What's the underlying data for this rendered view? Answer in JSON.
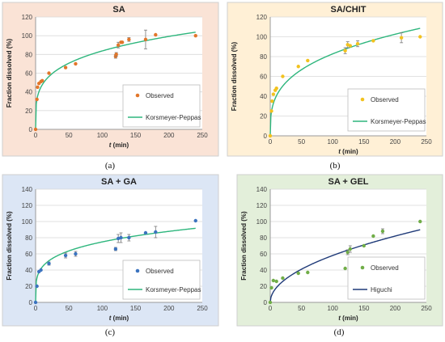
{
  "colors": {
    "panel_a_bg": "#fae3d6",
    "panel_b_bg": "#fff0d6",
    "panel_c_bg": "#dce6f5",
    "panel_d_bg": "#e3efda",
    "border": "#cfcfcf",
    "grid": "#d9d9d9",
    "fit_green": "#2eb67d",
    "fit_navy": "#1f3a78",
    "marker_a": "#e2762a",
    "marker_b": "#f2c21f",
    "marker_c": "#3b73bf",
    "marker_d": "#70ad47"
  },
  "chart_data": [
    {
      "label": "(a)",
      "type": "scatter",
      "title": "SA",
      "xlabel_var": "t",
      "xlabel_unit": " (min)",
      "ylabel": "Fraction dissolved (%)",
      "xlim": [
        0,
        250
      ],
      "ylim": [
        0,
        120
      ],
      "xticks": [
        0,
        50,
        100,
        150,
        200,
        250
      ],
      "yticks": [
        0,
        20,
        40,
        60,
        80,
        100,
        120
      ],
      "grid": true,
      "legend_position": "bottom-right",
      "observed": {
        "name": "Observed",
        "x": [
          0,
          2,
          3,
          5,
          8,
          10,
          20,
          45,
          60,
          120,
          121,
          124,
          128,
          130,
          140,
          165,
          180,
          240
        ],
        "y": [
          0,
          32,
          45,
          49,
          51,
          52,
          60,
          66,
          70,
          78,
          80,
          90,
          93,
          93,
          96,
          96,
          101,
          100
        ],
        "err": [
          0,
          0,
          0,
          0,
          0,
          0,
          0,
          0,
          0,
          2,
          2,
          3,
          0,
          0,
          2,
          10,
          0,
          0
        ]
      },
      "fit": {
        "name": "Korsmeyer-Peppas",
        "model": "power",
        "k": 27.1,
        "n": 0.245
      }
    },
    {
      "label": "(b)",
      "type": "scatter",
      "title": "SA/CHIT",
      "xlabel_var": "t",
      "xlabel_unit": " (min)",
      "ylabel": "Fraction dissolved (%)",
      "xlim": [
        0,
        250
      ],
      "ylim": [
        0,
        120
      ],
      "xticks": [
        0,
        50,
        100,
        150,
        200,
        250
      ],
      "yticks": [
        0,
        20,
        40,
        60,
        80,
        100,
        120
      ],
      "grid": true,
      "legend_position": "bottom-right",
      "observed": {
        "name": "Observed",
        "x": [
          0,
          2,
          3,
          5,
          8,
          10,
          20,
          45,
          60,
          120,
          124,
          128,
          140,
          165,
          210,
          240
        ],
        "y": [
          0,
          25,
          35,
          42,
          46,
          48,
          60,
          70,
          76,
          86,
          92,
          91,
          93,
          96,
          99,
          100
        ],
        "err": [
          0,
          0,
          0,
          0,
          0,
          0,
          0,
          0,
          0,
          3,
          3,
          0,
          3,
          0,
          5,
          0
        ]
      },
      "fit": {
        "name": "Korsmeyer-Peppas",
        "model": "power",
        "k": 19.85,
        "n": 0.31
      }
    },
    {
      "label": "(c)",
      "type": "scatter",
      "title": "SA + GA",
      "xlabel_var": "t",
      "xlabel_unit": " (min)",
      "ylabel": "Fraction dissolved (%)",
      "xlim": [
        0,
        250
      ],
      "ylim": [
        0,
        140
      ],
      "xticks": [
        0,
        50,
        100,
        150,
        200,
        250
      ],
      "yticks": [
        0,
        20,
        40,
        60,
        80,
        100,
        120,
        140
      ],
      "grid": true,
      "legend_position": "bottom-right",
      "observed": {
        "name": "Observed",
        "x": [
          0,
          2,
          5,
          8,
          20,
          45,
          60,
          120,
          124,
          128,
          140,
          165,
          180,
          240
        ],
        "y": [
          0,
          20,
          38,
          40,
          48,
          58,
          60,
          66,
          79,
          80,
          80,
          86,
          87,
          101
        ],
        "err": [
          0,
          0,
          0,
          0,
          2,
          3,
          3,
          2,
          5,
          6,
          4,
          0,
          7,
          0
        ]
      },
      "fit": {
        "name": "Korsmeyer-Peppas",
        "model": "power",
        "k": 25.7,
        "n": 0.232
      }
    },
    {
      "label": "(d)",
      "type": "scatter",
      "title": "SA + GEL",
      "xlabel_var": "t",
      "xlabel_unit": " (min)",
      "ylabel": "Fraction dissolved (%)",
      "xlim": [
        0,
        250
      ],
      "ylim": [
        0,
        140
      ],
      "xticks": [
        0,
        50,
        100,
        150,
        200,
        250
      ],
      "yticks": [
        0,
        20,
        40,
        60,
        80,
        100,
        120,
        140
      ],
      "grid": true,
      "legend_position": "bottom-right",
      "observed": {
        "name": "Observed",
        "x": [
          0,
          2,
          5,
          10,
          20,
          45,
          60,
          120,
          124,
          128,
          150,
          165,
          180,
          240
        ],
        "y": [
          0,
          18,
          27,
          26,
          30,
          36,
          37,
          42,
          62,
          66,
          70,
          82,
          88,
          100
        ],
        "err": [
          0,
          0,
          0,
          0,
          0,
          0,
          0,
          0,
          3,
          4,
          0,
          0,
          3,
          0
        ]
      },
      "fit": {
        "name": "Higuchi",
        "model": "sqrt",
        "k": 5.8
      }
    }
  ]
}
